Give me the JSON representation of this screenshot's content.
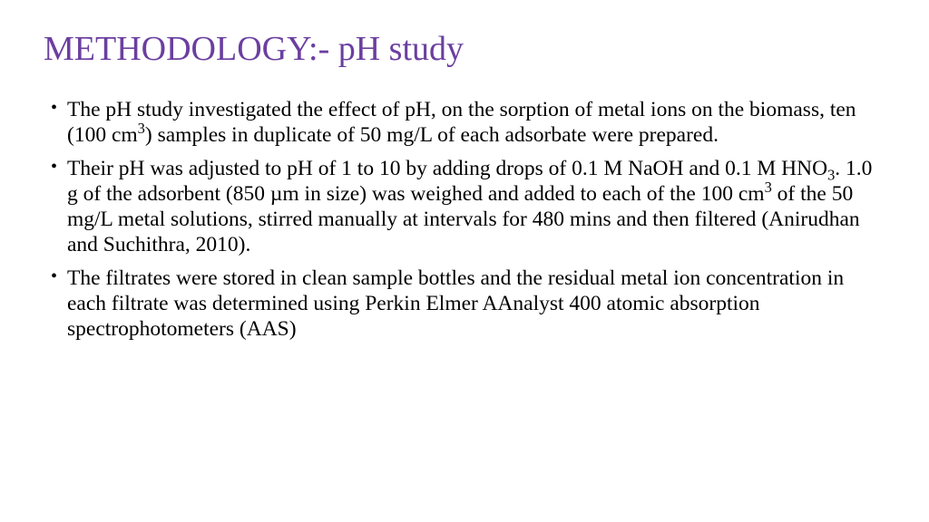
{
  "title": {
    "text": "METHODOLOGY:- pH study",
    "color": "#6b3fa0",
    "fontsize": 38
  },
  "body": {
    "color": "#000000",
    "fontsize": 23.5,
    "bullets": [
      "The pH study investigated the effect of pH, on the sorption of metal ions on the biomass, ten (100 cm<sup>3</sup>) samples in duplicate of 50 mg/L of each adsorbate were prepared.",
      "Their pH was adjusted to pH of 1 to 10 by adding drops of 0.1 M NaOH and 0.1 M HNO<sub>3</sub>. 1.0 g of the adsorbent (850 µm in size) was weighed and added to each of the 100 cm<sup>3</sup> of the 50 mg/L metal solutions,  stirred manually at intervals for 480 mins and then filtered (Anirudhan and Suchithra, 2010).",
      "The filtrates were stored in clean sample bottles and the residual metal ion concentration in each filtrate was determined using Perkin Elmer AAnalyst 400 atomic absorption spectrophotometers (AAS)"
    ]
  },
  "background_color": "#ffffff"
}
